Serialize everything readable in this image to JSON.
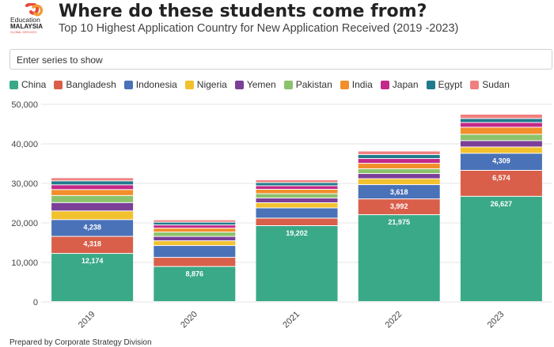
{
  "header": {
    "logo_text_1": "Education",
    "logo_text_2": "MALAYSIA",
    "logo_text_3": "GLOBAL SERVICES",
    "title": "Where do these students come from?",
    "subtitle": "Top 10 Highest Application Country for New Application Received (2019 -2023)"
  },
  "search": {
    "placeholder": "Enter series to show"
  },
  "footer": {
    "note": "Prepared by Corporate Strategy Division"
  },
  "chart_data": {
    "type": "bar",
    "stacked": true,
    "categories": [
      "2019",
      "2020",
      "2021",
      "2022",
      "2023"
    ],
    "ylim": [
      0,
      50000
    ],
    "yticks": [
      0,
      10000,
      20000,
      30000,
      40000,
      50000
    ],
    "ytick_labels": [
      "0",
      "10,000",
      "20,000",
      "30,000",
      "40,000",
      "50,000"
    ],
    "grid": true,
    "legend_position": "top-left",
    "series": [
      {
        "name": "China",
        "color": "#3aa987",
        "values": [
          12174,
          8876,
          19202,
          21975,
          26627
        ],
        "labels": [
          "12,174",
          "8,876",
          "19,202",
          "21,975",
          "26,627"
        ]
      },
      {
        "name": "Bangladesh",
        "color": "#d95f4a",
        "values": [
          4318,
          2300,
          1900,
          3992,
          6574
        ],
        "labels": [
          "4,318",
          null,
          null,
          "3,992",
          "6,574"
        ]
      },
      {
        "name": "Indonesia",
        "color": "#4a72b8",
        "values": [
          4238,
          3000,
          2600,
          3618,
          4309
        ],
        "labels": [
          "4,238",
          null,
          null,
          "3,618",
          "4,309"
        ]
      },
      {
        "name": "Nigeria",
        "color": "#f2c12e",
        "values": [
          2200,
          1200,
          1300,
          1500,
          1600
        ],
        "labels": []
      },
      {
        "name": "Yemen",
        "color": "#7b3f98",
        "values": [
          2100,
          1100,
          1200,
          1300,
          1600
        ],
        "labels": []
      },
      {
        "name": "Pakistan",
        "color": "#8cc26b",
        "values": [
          1800,
          1100,
          1100,
          1200,
          1600
        ],
        "labels": []
      },
      {
        "name": "India",
        "color": "#f28e2b",
        "values": [
          1500,
          1000,
          1100,
          1400,
          1800
        ],
        "labels": []
      },
      {
        "name": "Japan",
        "color": "#c2298a",
        "values": [
          1200,
          800,
          900,
          1200,
          1200
        ],
        "labels": []
      },
      {
        "name": "Egypt",
        "color": "#1f7a8c",
        "values": [
          1000,
          700,
          800,
          1000,
          1000
        ],
        "labels": []
      },
      {
        "name": "Sudan",
        "color": "#f08080",
        "values": [
          800,
          600,
          700,
          900,
          1100
        ],
        "labels": []
      }
    ]
  }
}
